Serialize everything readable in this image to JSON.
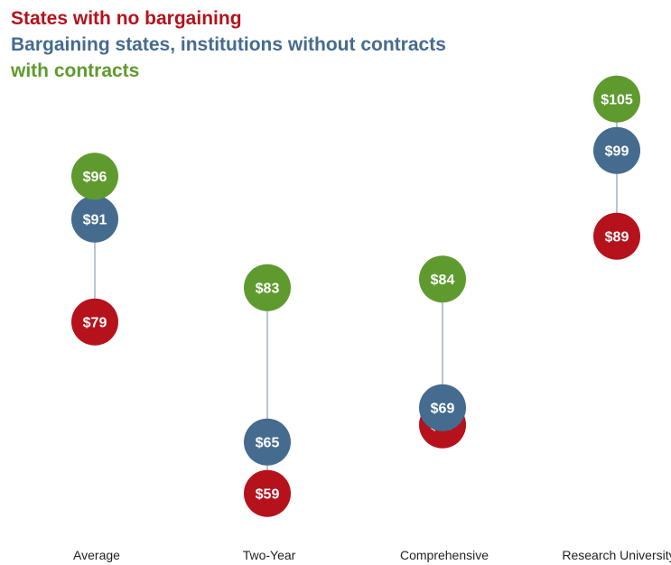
{
  "chart_data": {
    "type": "dot-range",
    "categories": [
      "Average",
      "Two-Year",
      "Comprehensive",
      "Research University"
    ],
    "series": [
      {
        "name": "States with no bargaining",
        "color": "#b5121b",
        "values": [
          79,
          59,
          67,
          89
        ],
        "labels": [
          "$79",
          "$59",
          "$67",
          "$89"
        ]
      },
      {
        "name": "Bargaining states, institutions without contracts",
        "color": "#456b8f",
        "values": [
          91,
          65,
          69,
          99
        ],
        "labels": [
          "$91",
          "$65",
          "$69",
          "$99"
        ]
      },
      {
        "name": "with contracts",
        "color": "#5f9a2f",
        "values": [
          96,
          83,
          84,
          105
        ],
        "labels": [
          "$96",
          "$83",
          "$84",
          "$105"
        ]
      }
    ],
    "ylim": [
      55,
      108
    ],
    "grid": false,
    "legend_position": "top-left",
    "connector_color": "#9fb3c4"
  }
}
